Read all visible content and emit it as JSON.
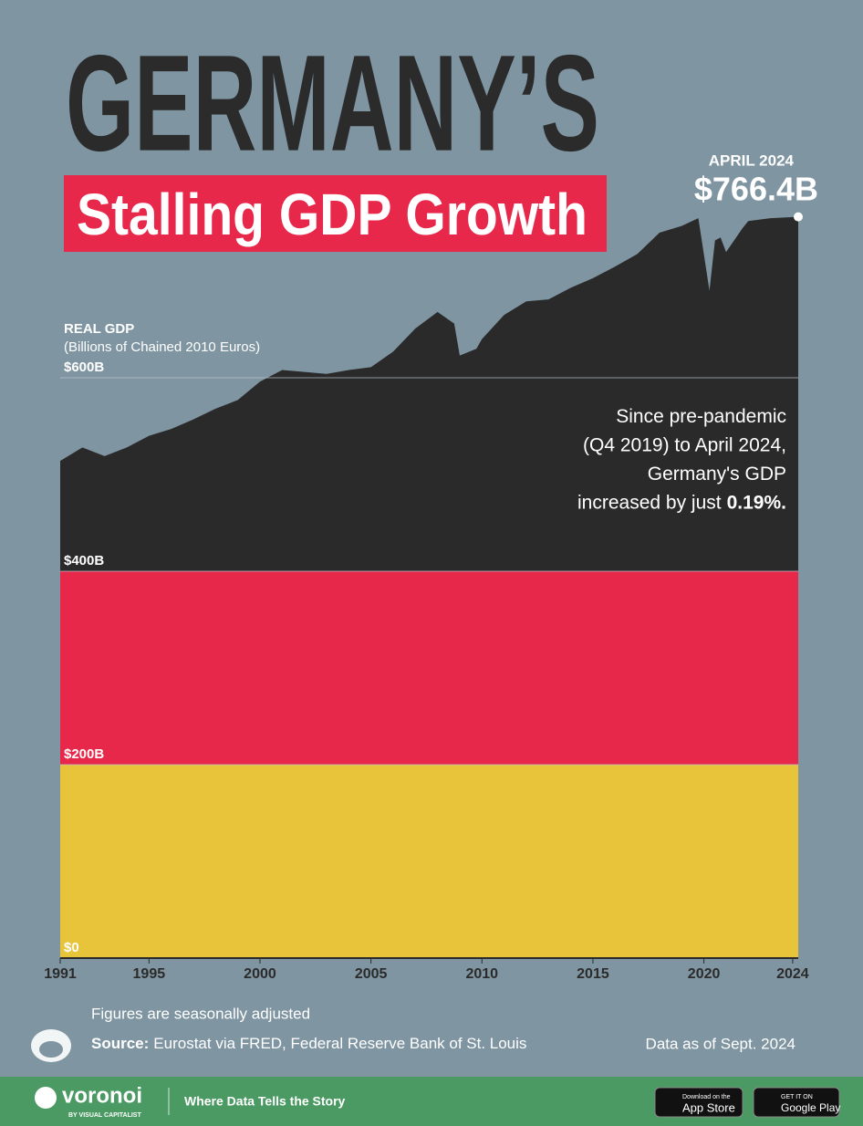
{
  "chart_data": {
    "type": "area",
    "title": "GERMANY’S",
    "subtitle": "Stalling GDP Growth",
    "y_label": "REAL GDP",
    "y_label_sub": "(Billions of Chained 2010 Euros)",
    "x": [
      1991,
      1992,
      1993,
      1994,
      1995,
      1996,
      1997,
      1998,
      1999,
      2000,
      2001,
      2002,
      2003,
      2004,
      2005,
      2006,
      2007,
      2008,
      2008.75,
      2009,
      2009.75,
      2010,
      2011,
      2012,
      2013,
      2014,
      2015,
      2016,
      2017,
      2018,
      2019,
      2019.75,
      2020.25,
      2020.5,
      2020.75,
      2021,
      2021.75,
      2022,
      2023,
      2024.25
    ],
    "values": [
      514,
      528,
      519,
      528,
      540,
      547,
      557,
      568,
      577,
      596,
      608,
      606,
      604,
      608,
      611,
      627,
      651,
      668,
      656,
      623,
      630,
      640,
      665,
      679,
      681,
      693,
      703,
      715,
      728,
      750,
      757,
      765,
      690,
      742,
      745,
      730,
      755,
      762,
      765,
      766.4
    ],
    "fill_colors": [
      "#e8c43a",
      "#e8284a",
      "#2a2a2a"
    ],
    "xlim": [
      1991,
      2024.25
    ],
    "xticks": [
      1991,
      1995,
      2000,
      2005,
      2010,
      2015,
      2020,
      2024
    ],
    "ylim": [
      0,
      800
    ],
    "yticks": [
      {
        "value": 0,
        "label": "$0"
      },
      {
        "value": 200,
        "label": "$200B"
      },
      {
        "value": 400,
        "label": "$400B"
      },
      {
        "value": 600,
        "label": "$600B"
      }
    ],
    "grid": true,
    "last_point_date": "APRIL 2024",
    "last_point_label": "$766.4B",
    "annotation": [
      "Since pre-pandemic",
      "(Q4 2019) to April 2024,",
      "Germany's GDP",
      "increased by just"
    ],
    "annotation_highlight": "0.19%.",
    "note": "Figures are seasonally adjusted",
    "source_label": "Source:",
    "source": "Eurostat via FRED, Federal Reserve Bank of St. Louis",
    "data_date": "Data as of Sept. 2024"
  },
  "footer": {
    "brand": "voronoi",
    "brand_sub": "BY VISUAL CAPITALIST",
    "tagline": "Where Data Tells the Story",
    "app_store_top": "Download on the",
    "app_store": "App Store",
    "google_play_top": "GET IT ON",
    "google_play": "Google Play"
  }
}
